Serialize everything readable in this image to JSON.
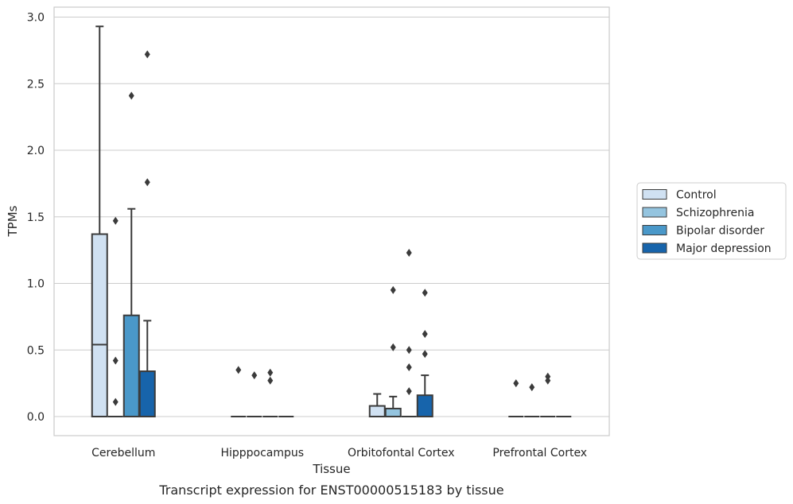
{
  "chart_data": {
    "type": "box",
    "caption": "Transcript expression for ENST00000515183 by tissue",
    "xlabel": "Tissue",
    "ylabel": "TPMs",
    "ylim": [
      -0.14,
      3.07
    ],
    "yticks": [
      "0.0",
      "0.5",
      "1.0",
      "1.5",
      "2.0",
      "2.5",
      "3.0"
    ],
    "ytick_values": [
      0,
      0.5,
      1.0,
      1.5,
      2.0,
      2.5,
      3.0
    ],
    "grid": true,
    "legend_position": "right",
    "categories": [
      "Cerebellum",
      "Hipppocampus",
      "Orbitofontal Cortex",
      "Prefrontal Cortex"
    ],
    "series": [
      {
        "name": "Control",
        "color": "#d0e1f2",
        "boxes": [
          {
            "q1": 0,
            "median": 0.54,
            "q3": 1.37,
            "whisker_low": 0,
            "whisker_high": 2.93,
            "outliers": []
          },
          {
            "q1": 0,
            "median": 0,
            "q3": 0,
            "whisker_low": 0,
            "whisker_high": 0,
            "outliers": [
              0.35
            ]
          },
          {
            "q1": 0,
            "median": 0,
            "q3": 0.08,
            "whisker_low": 0,
            "whisker_high": 0.17,
            "outliers": []
          },
          {
            "q1": 0,
            "median": 0,
            "q3": 0,
            "whisker_low": 0,
            "whisker_high": 0,
            "outliers": [
              0.25
            ]
          }
        ]
      },
      {
        "name": "Schizophrenia",
        "color": "#94c4df",
        "boxes": [
          {
            "q1": 0,
            "median": 0,
            "q3": 0,
            "whisker_low": 0,
            "whisker_high": 0,
            "outliers": [
              1.47,
              0.42,
              0.11
            ]
          },
          {
            "q1": 0,
            "median": 0,
            "q3": 0,
            "whisker_low": 0,
            "whisker_high": 0,
            "outliers": [
              0.31
            ]
          },
          {
            "q1": 0,
            "median": 0,
            "q3": 0.06,
            "whisker_low": 0,
            "whisker_high": 0.15,
            "outliers": [
              0.95,
              0.52
            ]
          },
          {
            "q1": 0,
            "median": 0,
            "q3": 0,
            "whisker_low": 0,
            "whisker_high": 0,
            "outliers": [
              0.22
            ]
          }
        ]
      },
      {
        "name": "Bipolar disorder",
        "color": "#4a98c9",
        "boxes": [
          {
            "q1": 0,
            "median": 0,
            "q3": 0.76,
            "whisker_low": 0,
            "whisker_high": 1.56,
            "outliers": [
              2.41
            ]
          },
          {
            "q1": 0,
            "median": 0,
            "q3": 0,
            "whisker_low": 0,
            "whisker_high": 0,
            "outliers": [
              0.33,
              0.27
            ]
          },
          {
            "q1": 0,
            "median": 0,
            "q3": 0,
            "whisker_low": 0,
            "whisker_high": 0,
            "outliers": [
              1.23,
              0.5,
              0.37,
              0.19
            ]
          },
          {
            "q1": 0,
            "median": 0,
            "q3": 0,
            "whisker_low": 0,
            "whisker_high": 0,
            "outliers": [
              0.3,
              0.27
            ]
          }
        ]
      },
      {
        "name": "Major depression",
        "color": "#1764ab",
        "boxes": [
          {
            "q1": 0,
            "median": 0,
            "q3": 0.34,
            "whisker_low": 0,
            "whisker_high": 0.72,
            "outliers": [
              2.72,
              1.76
            ]
          },
          {
            "q1": 0,
            "median": 0,
            "q3": 0,
            "whisker_low": 0,
            "whisker_high": 0,
            "outliers": []
          },
          {
            "q1": 0,
            "median": 0,
            "q3": 0.16,
            "whisker_low": 0,
            "whisker_high": 0.31,
            "outliers": [
              0.93,
              0.62,
              0.47
            ]
          },
          {
            "q1": 0,
            "median": 0,
            "q3": 0,
            "whisker_low": 0,
            "whisker_high": 0,
            "outliers": []
          }
        ]
      }
    ]
  }
}
